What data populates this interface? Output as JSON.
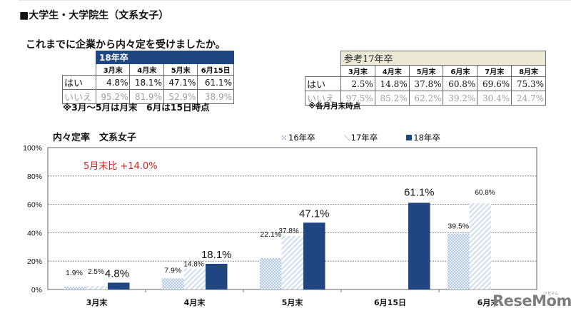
{
  "header": {
    "title": "■大学生・大学院生（文系女子）",
    "question": "これまでに企業から内々定を受けましたか。"
  },
  "table_18": {
    "title": "18年卒",
    "columns": [
      "3月末",
      "4月末",
      "5月末",
      "6月15日"
    ],
    "rows": [
      {
        "label": "はい",
        "values": [
          "4.8%",
          "18.1%",
          "47.1%",
          "61.1%"
        ]
      },
      {
        "label": "いいえ",
        "values": [
          "95.2%",
          "81.9%",
          "52.9%",
          "38.9%"
        ]
      }
    ],
    "note": "※3月～5月は月末　6月は15日時点"
  },
  "table_17": {
    "title": "参考17年卒",
    "columns": [
      "3月末",
      "4月末",
      "5月末",
      "6月末",
      "7月末",
      "8月末"
    ],
    "rows": [
      {
        "label": "はい",
        "values": [
          "2.5%",
          "14.8%",
          "37.8%",
          "60.8%",
          "69.6%",
          "75.3%"
        ]
      },
      {
        "label": "いいえ",
        "values": [
          "97.5%",
          "85.2%",
          "62.2%",
          "39.2%",
          "30.4%",
          "24.7%"
        ]
      }
    ],
    "note": "※各月月末時点"
  },
  "chart": {
    "annotation": "5月末比 +14.0%",
    "annotation_color": "#d42020"
  },
  "watermark": {
    "text": "ReseMom",
    "sub": "リセマム"
  },
  "colors": {
    "series_16": "#a9c4e0",
    "series_17": "#c8d9ea",
    "series_18": "#1f4680",
    "gridline": "#707070"
  },
  "chart_data": {
    "type": "bar",
    "title": "内々定率　文系女子",
    "xlabel": "",
    "ylabel": "",
    "ylim": [
      0,
      100
    ],
    "yticks": [
      "0%",
      "20%",
      "40%",
      "60%",
      "80%",
      "100%"
    ],
    "grid": true,
    "legend_position": "top-right",
    "categories": [
      "3月末",
      "4月末",
      "5月末",
      "6月15日",
      "6月末"
    ],
    "series": [
      {
        "name": "16年卒",
        "values": [
          1.9,
          7.9,
          22.1,
          null,
          39.5
        ],
        "labels": [
          "1.9%",
          "7.9%",
          "22.1%",
          "",
          "39.5%"
        ]
      },
      {
        "name": "17年卒",
        "values": [
          2.5,
          14.8,
          37.8,
          null,
          60.8
        ],
        "labels": [
          "2.5%",
          "14.8%",
          "37.8%",
          "",
          "60.8%"
        ]
      },
      {
        "name": "18年卒",
        "values": [
          4.8,
          18.1,
          47.1,
          61.1,
          null
        ],
        "labels": [
          "4.8%",
          "18.1%",
          "47.1%",
          "61.1%",
          ""
        ]
      }
    ],
    "annotations": [
      {
        "text": "5月末比 +14.0%",
        "color": "#d42020"
      }
    ]
  }
}
